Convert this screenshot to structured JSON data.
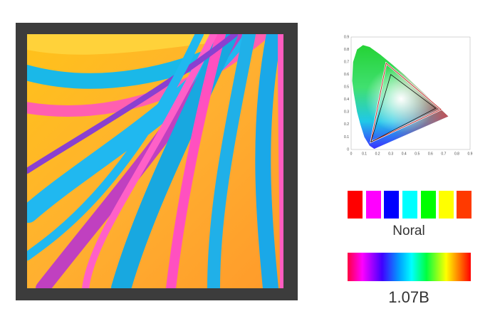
{
  "gamut_chart": {
    "xticks": [
      "0",
      "0.1",
      "0.2",
      "0.3",
      "0.4",
      "0.5",
      "0.6",
      "0.7",
      "0.8",
      "0.9"
    ],
    "yticks": [
      "0",
      "0.1",
      "0.2",
      "0.3",
      "0.4",
      "0.5",
      "0.6",
      "0.7",
      "0.8",
      "0.9"
    ]
  },
  "swatch_caption": "Noral",
  "gradient_caption": "1.07B"
}
